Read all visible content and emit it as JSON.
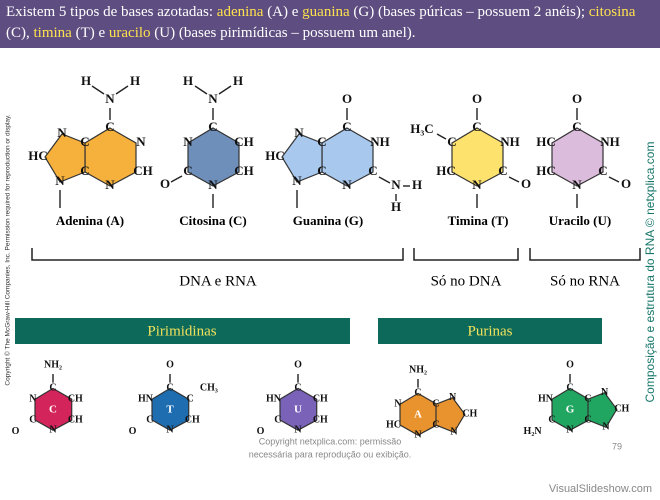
{
  "header": {
    "segments": [
      {
        "text": "Existem 5 tipos de bases azotadas: ",
        "highlight": false
      },
      {
        "text": "adenina",
        "highlight": true
      },
      {
        "text": " (A) e ",
        "highlight": false
      },
      {
        "text": "guanina",
        "highlight": true
      },
      {
        "text": " (G) (bases púricas – possuem 2 anéis); ",
        "highlight": false
      },
      {
        "text": "citosina",
        "highlight": true
      },
      {
        "text": " (C), ",
        "highlight": false
      },
      {
        "text": "timina",
        "highlight": true
      },
      {
        "text": " (T) e ",
        "highlight": false
      },
      {
        "text": "uracilo",
        "highlight": true
      },
      {
        "text": " (U) (bases pirimídicas – possuem um anel).",
        "highlight": false
      }
    ]
  },
  "side_note": "Copyright © The McGraw-Hill Companies, Inc. Permission required for reproduction or display.",
  "watermark": "Composição e estrutura do RNA © netxplica.com",
  "top_molecules": [
    {
      "name": "Adenina (A)",
      "atoms": [
        "C",
        "N",
        "CH",
        "N",
        "C",
        "C",
        "N",
        "HC",
        "N",
        "N",
        "H",
        "H"
      ]
    },
    {
      "name": "Citosina (C)",
      "atoms": [
        "N",
        "H",
        "H",
        "C",
        "CH",
        "CH",
        "N",
        "C",
        "N",
        "O"
      ]
    },
    {
      "name": "Guanina (G)",
      "atoms": [
        "O",
        "C",
        "NH",
        "C",
        "N",
        "H",
        "H",
        "N",
        "C",
        "C",
        "N",
        "HC",
        "N"
      ]
    },
    {
      "name": "Timina (T)",
      "atoms": [
        "O",
        "C",
        "NH",
        "C",
        "O",
        "N",
        "HC",
        "C",
        "H₃C"
      ]
    },
    {
      "name": "Uracilo (U)",
      "atoms": [
        "O",
        "C",
        "NH",
        "C",
        "O",
        "N",
        "HC",
        "HC"
      ]
    }
  ],
  "groups": [
    "DNA e RNA",
    "Só no DNA",
    "Só no RNA"
  ],
  "sections": [
    "Pirimidinas",
    "Purinas"
  ],
  "bottom_molecules": [
    {
      "letter": "C",
      "atoms": [
        "NH₂",
        "C",
        "N",
        "CH",
        "CH",
        "C",
        "O",
        "N"
      ]
    },
    {
      "letter": "T",
      "atoms": [
        "O",
        "C",
        "HN",
        "C",
        "CH₃",
        "CH",
        "C",
        "O",
        "N"
      ]
    },
    {
      "letter": "U",
      "atoms": [
        "O",
        "C",
        "HN",
        "CH",
        "CH",
        "C",
        "O",
        "N"
      ]
    },
    {
      "letter": "A",
      "atoms": [
        "NH₂",
        "C",
        "N",
        "C",
        "N",
        "CH",
        "N",
        "C",
        "N",
        "HC"
      ]
    },
    {
      "letter": "G",
      "atoms": [
        "O",
        "C",
        "HN",
        "C",
        "N",
        "CH",
        "N",
        "C",
        "N",
        "C",
        "H₂N"
      ]
    }
  ],
  "footer": {
    "copyright": [
      "Copyright netxplica.com: permissão",
      "necessária para reprodução ou exibição."
    ],
    "page": 79,
    "site": "VisualSlideshow.com"
  }
}
